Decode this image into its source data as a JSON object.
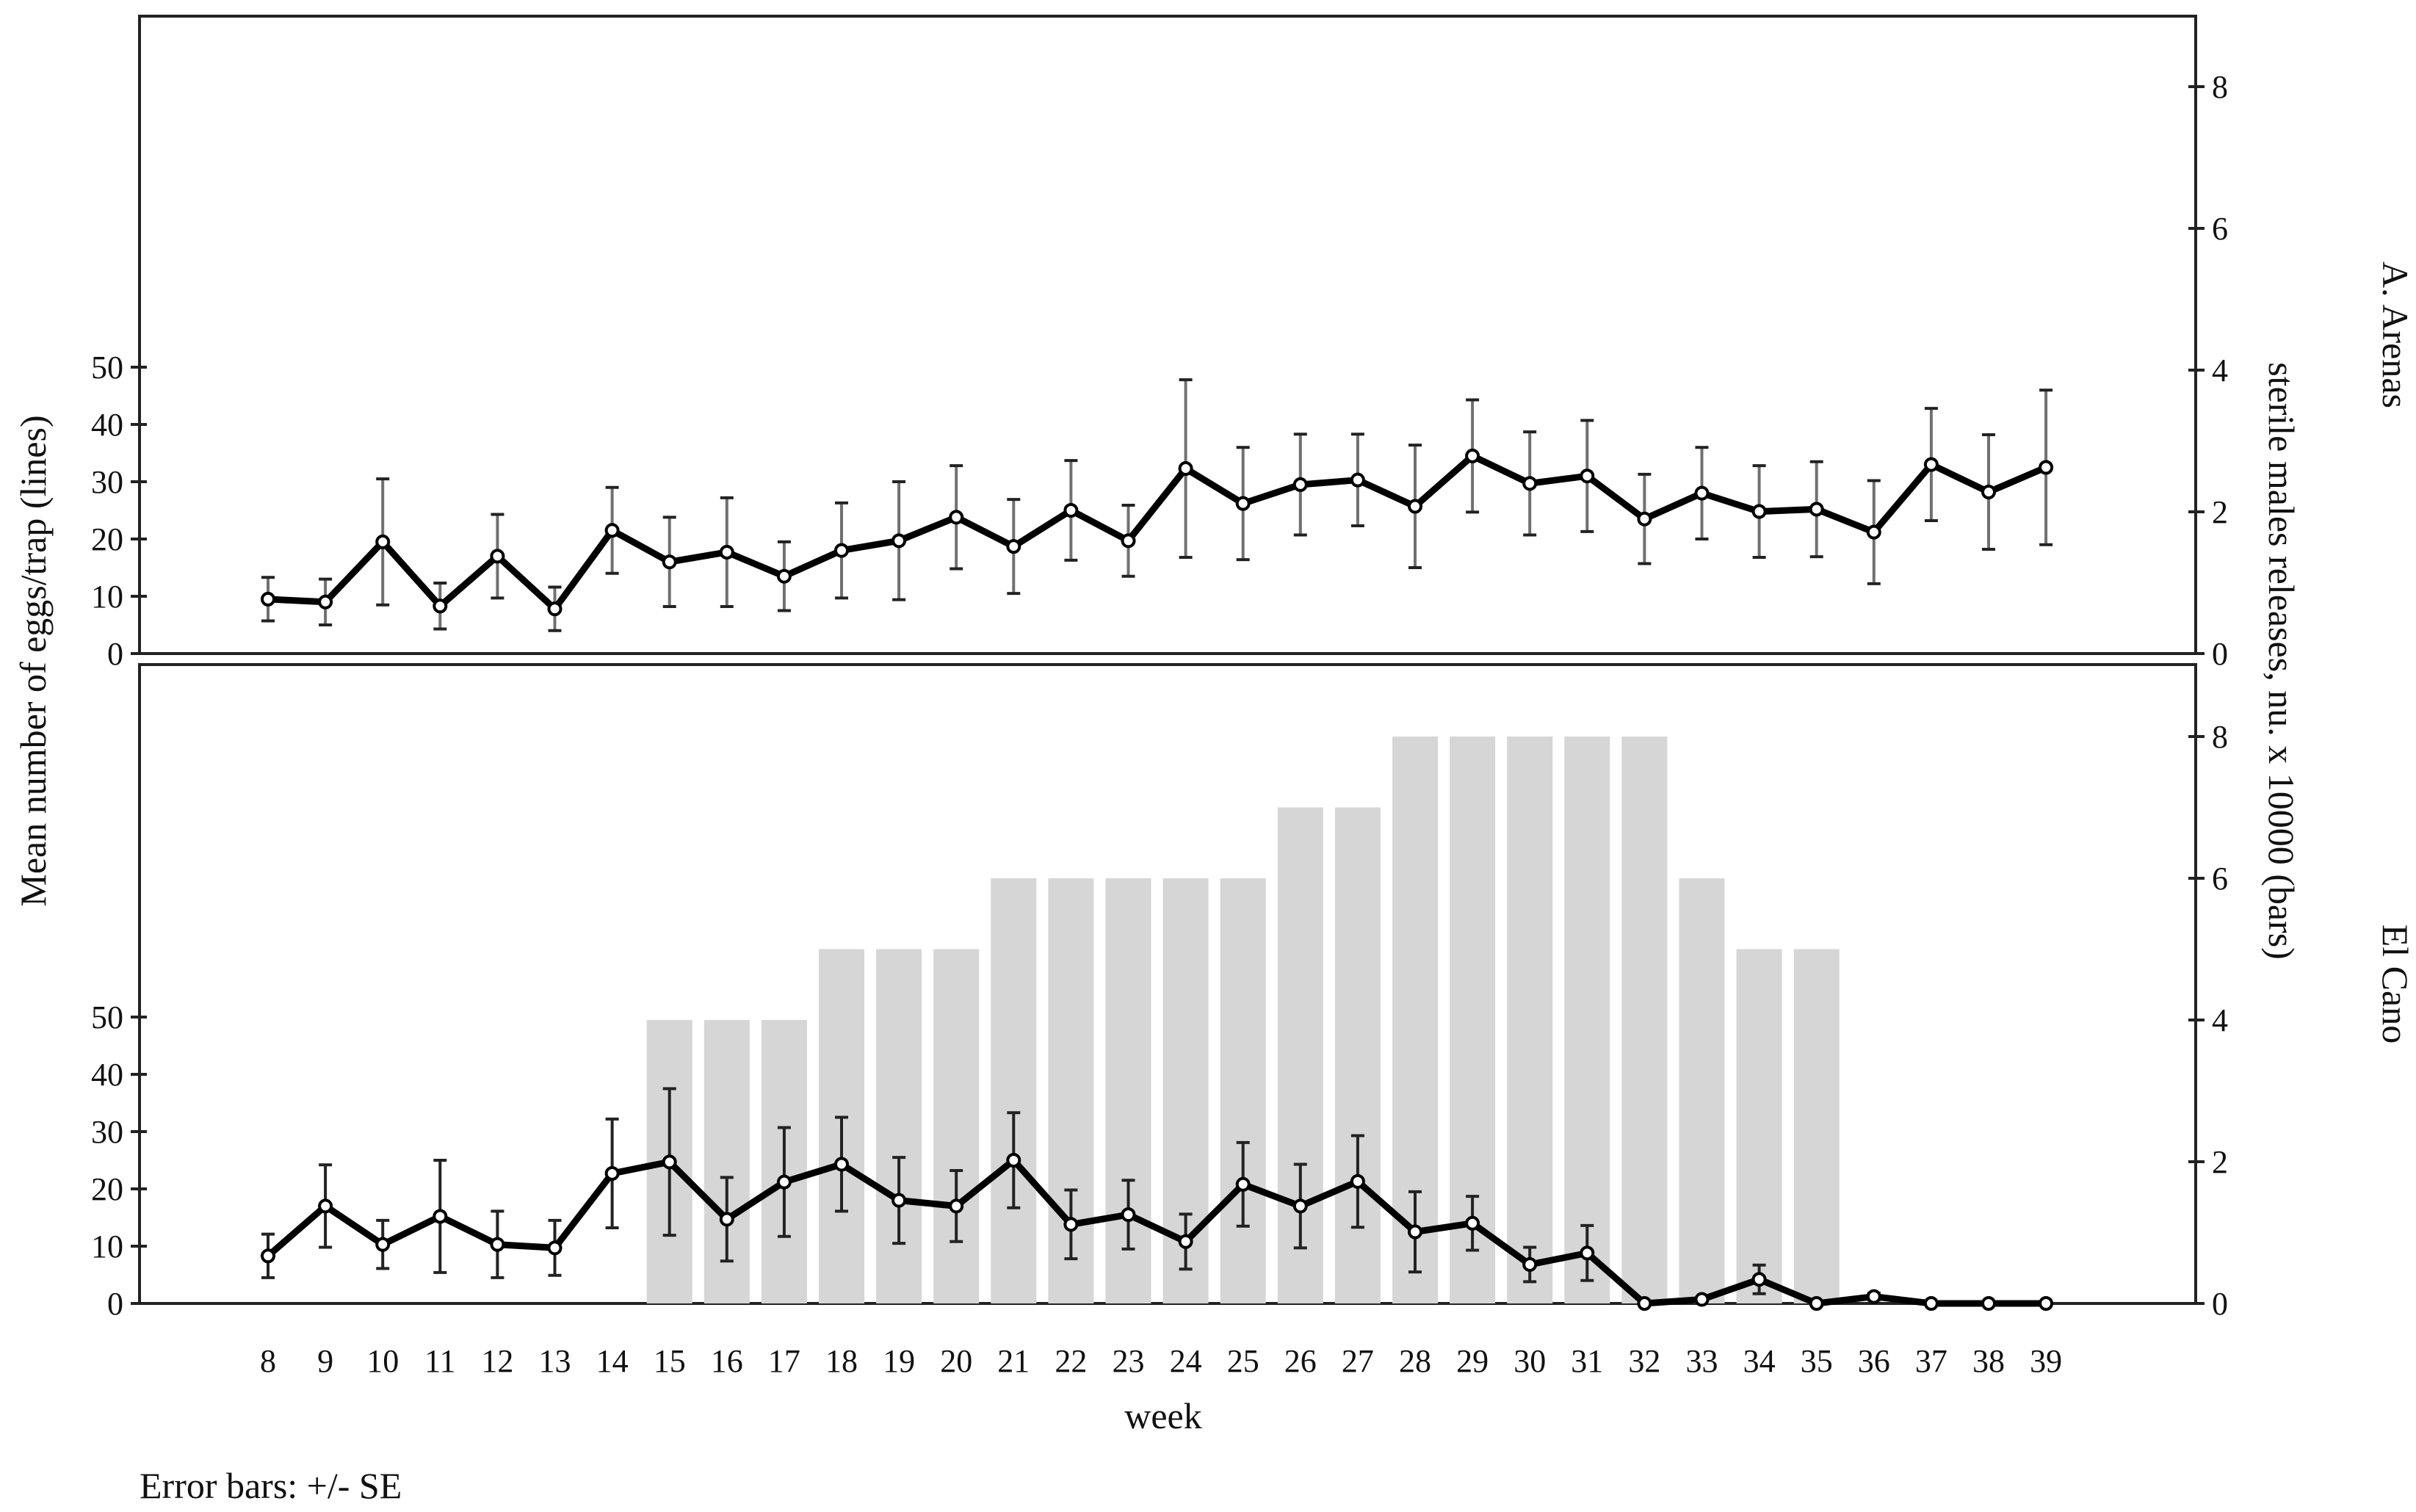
{
  "chart_data": {
    "type": "line",
    "x": [
      8,
      9,
      10,
      11,
      12,
      13,
      14,
      15,
      16,
      17,
      18,
      19,
      20,
      21,
      22,
      23,
      24,
      25,
      26,
      27,
      28,
      29,
      30,
      31,
      32,
      33,
      34,
      35,
      36,
      37,
      38,
      39
    ],
    "xlabel": "week",
    "ylabel_left": "Mean number of eggs/trap (lines)",
    "ylabel_right": "sterile males releases, nu. x 10000 (bars)",
    "y_ticks_left": [
      "0",
      "10",
      "20",
      "30",
      "40",
      "50"
    ],
    "y_ticks_right": [
      "0",
      "2",
      "4",
      "6",
      "8"
    ],
    "ylim_left": [
      0,
      55
    ],
    "ylim_right": [
      0,
      8.8
    ],
    "note": "Error bars: +/- SE",
    "panels": [
      {
        "label": "A. Arenas",
        "eggs_mean": [
          9.5,
          9,
          19.5,
          8.3,
          17,
          7.8,
          21.5,
          16,
          17.7,
          13.5,
          18,
          19.7,
          23.8,
          18.7,
          25,
          19.7,
          32.3,
          26.2,
          29.5,
          30.3,
          25.7,
          34.5,
          29.7,
          31,
          23.5,
          28,
          24.8,
          25.2,
          21.2,
          33,
          28.2,
          32.5
        ],
        "eggs_se": [
          3.8,
          4,
          11,
          4,
          7.3,
          3.8,
          7.5,
          7.8,
          9.5,
          6,
          8.3,
          10.3,
          9,
          8.2,
          8.7,
          6.2,
          15.5,
          9.8,
          8.8,
          8,
          10.7,
          9.8,
          9,
          9.7,
          7.8,
          8,
          8,
          8.3,
          9,
          9.8,
          10,
          13.5
        ],
        "releases": []
      },
      {
        "label": "El Cano",
        "eggs_mean": [
          8.3,
          17,
          10.3,
          15.2,
          10.3,
          9.7,
          22.7,
          24.7,
          14.7,
          21.2,
          24.3,
          18,
          17,
          25,
          13.8,
          15.5,
          10.8,
          20.8,
          17,
          21.3,
          12.5,
          14,
          6.8,
          8.8,
          0,
          0.7,
          4.2,
          0,
          1.2,
          0,
          0,
          0
        ],
        "eggs_se": [
          3.8,
          7.2,
          4.2,
          9.8,
          5.8,
          4.8,
          9.5,
          12.8,
          7.3,
          9.5,
          8.2,
          7.5,
          6.2,
          8.3,
          6,
          6,
          4.8,
          7.3,
          7.3,
          8,
          7,
          4.7,
          3,
          4.8,
          0,
          0,
          2.5,
          0,
          0.6,
          0,
          0,
          0
        ],
        "releases": [
          0,
          0,
          0,
          0,
          0,
          0,
          0,
          4,
          4,
          4,
          5,
          5,
          5,
          6,
          6,
          6,
          6,
          6,
          7,
          7,
          8,
          8,
          8,
          8,
          8,
          6,
          5,
          5,
          0,
          0,
          0,
          0
        ]
      }
    ]
  }
}
